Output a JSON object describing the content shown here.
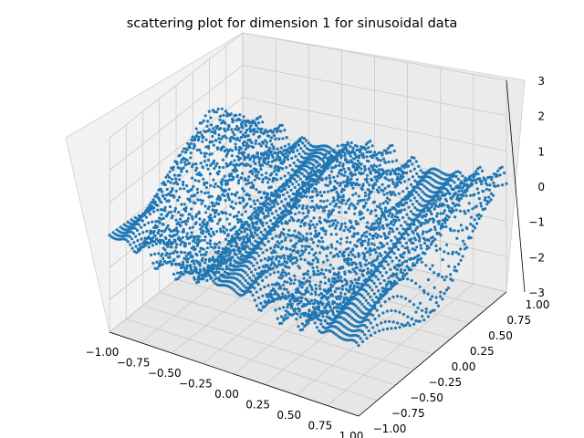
{
  "chart_data": {
    "type": "scatter",
    "projection": "3d",
    "title": "scattering plot for dimension 1 for sinusoidal data",
    "xlabel": "",
    "ylabel": "",
    "zlabel": "",
    "xlim": [
      -1.0,
      1.0
    ],
    "ylim": [
      -1.0,
      1.0
    ],
    "zlim": [
      -3.0,
      3.0
    ],
    "x_ticks": [
      "−1.00",
      "−0.75",
      "−0.50",
      "−0.25",
      "0.00",
      "0.25",
      "0.50",
      "0.75",
      "1.00"
    ],
    "y_ticks": [
      "−1.00",
      "−0.75",
      "−0.50",
      "−0.25",
      "0.00",
      "0.25",
      "0.50",
      "0.75",
      "1.00"
    ],
    "z_ticks": [
      "−3",
      "−2",
      "−1",
      "0",
      "1",
      "2",
      "3"
    ],
    "grid": true,
    "legend": "none",
    "series": [
      {
        "color": "#1f77b4",
        "marker": "dot",
        "description_of_data": "dense sinusoidal scatter filling the box in x and y; z oscillates roughly between -3 and 3 with several slow waves across x",
        "sample_points": [
          {
            "x": -1.0,
            "y": 0.85,
            "z": 0.2
          },
          {
            "x": -0.75,
            "y": 0.9,
            "z": 1.5
          },
          {
            "x": -0.5,
            "y": 0.95,
            "z": 2.6
          },
          {
            "x": -0.25,
            "y": 0.9,
            "z": 2.3
          },
          {
            "x": 0.0,
            "y": 0.85,
            "z": 1.0
          },
          {
            "x": 0.25,
            "y": 0.8,
            "z": 0.5
          },
          {
            "x": 0.5,
            "y": 0.7,
            "z": 1.2
          },
          {
            "x": 0.75,
            "y": 0.5,
            "z": 1.6
          },
          {
            "x": 1.0,
            "y": 0.2,
            "z": 0.8
          },
          {
            "x": -1.0,
            "y": -0.9,
            "z": -1.0
          },
          {
            "x": -0.5,
            "y": -0.9,
            "z": -2.6
          },
          {
            "x": 0.0,
            "y": -0.95,
            "z": -1.2
          },
          {
            "x": 0.5,
            "y": -0.9,
            "z": -2.9
          },
          {
            "x": 1.0,
            "y": -0.85,
            "z": -1.6
          }
        ]
      }
    ]
  }
}
